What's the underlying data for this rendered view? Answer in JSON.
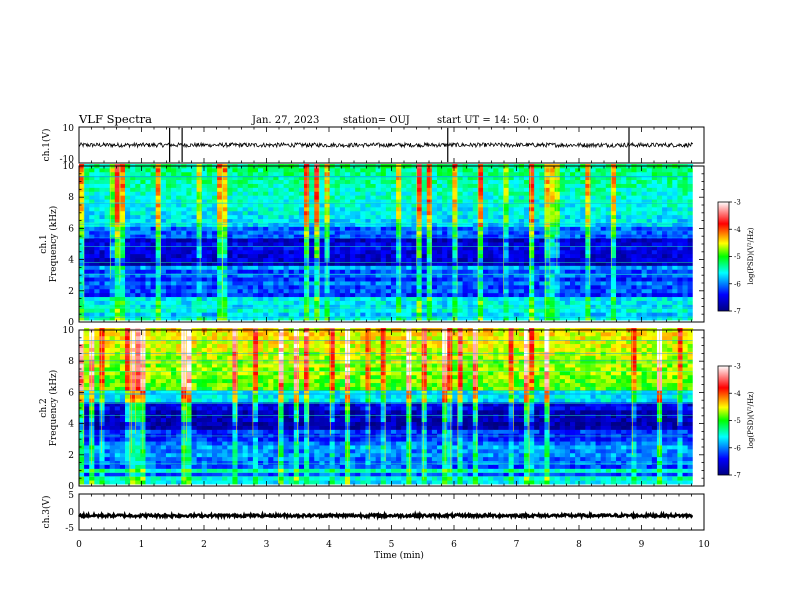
{
  "header": {
    "title": "VLF Spectra",
    "date": "Jan. 27, 2023",
    "station": "station= OUJ",
    "start_time": "start  UT =   14: 50: 0"
  },
  "chart_data": [
    {
      "panel": "ch1-waveform",
      "type": "line",
      "ylabel": "ch.1(V)",
      "ylim": [
        -10,
        10
      ],
      "yticks": [
        "10",
        "-10"
      ],
      "signal": {
        "baseline": 0,
        "amplitude": 1.2,
        "spike_times_min": [
          1.45,
          1.65,
          5.9,
          8.8
        ]
      }
    },
    {
      "panel": "ch1-spectrogram",
      "type": "heatmap",
      "ylabel_line1": "ch.1",
      "ylabel_line2": "Frequency (kHz)",
      "ylim": [
        0,
        10
      ],
      "yticks": [
        "0",
        "2",
        "4",
        "6",
        "8",
        "10"
      ],
      "colorbar": {
        "label": "log(PSD)(V²/Hz)",
        "range": [
          -7,
          -3
        ],
        "ticks": [
          "-3",
          "-4",
          "-5",
          "-6",
          "-7"
        ]
      }
    },
    {
      "panel": "ch2-spectrogram",
      "type": "heatmap",
      "ylabel_line1": "ch.2",
      "ylabel_line2": "Frequency (kHz)",
      "ylim": [
        0,
        10
      ],
      "yticks": [
        "0",
        "2",
        "4",
        "6",
        "8",
        "10"
      ],
      "colorbar": {
        "label": "log(PSD)(V²/Hz)",
        "range": [
          -7,
          -3
        ],
        "ticks": [
          "-3",
          "-4",
          "-5",
          "-6",
          "-7"
        ]
      }
    },
    {
      "panel": "ch3-waveform",
      "type": "line",
      "ylabel": "ch.3(V)",
      "ylim": [
        -5,
        5
      ],
      "yticks": [
        "5",
        "0",
        "-5"
      ],
      "signal": {
        "baseline": -1,
        "amplitude": 0.4
      }
    }
  ],
  "xaxis": {
    "label": "Time  (min)",
    "range": [
      0,
      10
    ],
    "data_end_min": 9.82,
    "ticks": [
      "0",
      "1",
      "2",
      "3",
      "4",
      "5",
      "6",
      "7",
      "8",
      "9",
      "10"
    ]
  },
  "colors": {
    "colormap": [
      "#000080",
      "#0000ff",
      "#00ffff",
      "#00ff00",
      "#ffff00",
      "#ff0000",
      "#ffffff"
    ]
  }
}
